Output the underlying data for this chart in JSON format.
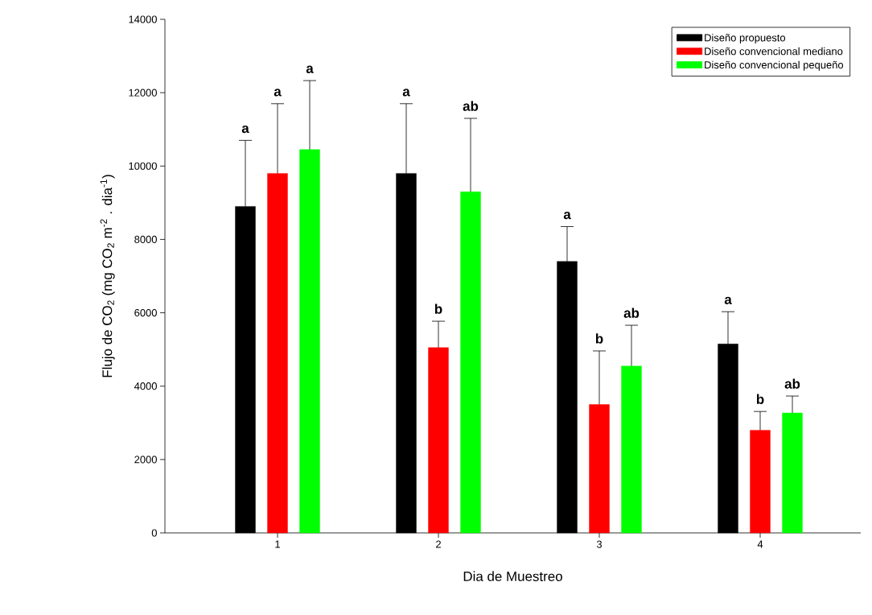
{
  "chart_data": {
    "type": "bar",
    "xlabel": "Dia de Muestreo",
    "ylabel": "Flujo de CO$_{2}$ (mg CO$_{2}$ m$^{-2}$ . dia$^{-1}$)",
    "categories": [
      "1",
      "2",
      "3",
      "4"
    ],
    "ylim": [
      0,
      14000
    ],
    "yticks": [
      0,
      2000,
      4000,
      6000,
      8000,
      10000,
      12000,
      14000
    ],
    "legend": "top right",
    "series": [
      {
        "name": "Diseño propuesto",
        "color": "#000000",
        "values": [
          8900,
          9800,
          7400,
          5150
        ],
        "errors": [
          [
            8900,
            10700
          ],
          [
            9800,
            11700
          ],
          [
            7400,
            8350
          ],
          [
            5150,
            6030
          ]
        ]
      },
      {
        "name": "Diseño convencional mediano",
        "color": "#ff0000",
        "values": [
          9800,
          5050,
          3500,
          2800
        ],
        "errors": [
          [
            9800,
            11700
          ],
          [
            5050,
            5770
          ],
          [
            3500,
            4960
          ],
          [
            2800,
            3310
          ]
        ]
      },
      {
        "name": "Diseño convencional pequeño",
        "color": "#00ff00",
        "values": [
          10450,
          9300,
          4550,
          3270
        ],
        "errors": [
          [
            10450,
            12330
          ],
          [
            9300,
            11300
          ],
          [
            4550,
            5660
          ],
          [
            3270,
            3730
          ]
        ]
      }
    ],
    "annotations": [
      "a",
      "a",
      "a",
      "a",
      "b",
      "ab",
      "a",
      "b",
      "ab",
      "a",
      "b",
      "ab"
    ]
  }
}
